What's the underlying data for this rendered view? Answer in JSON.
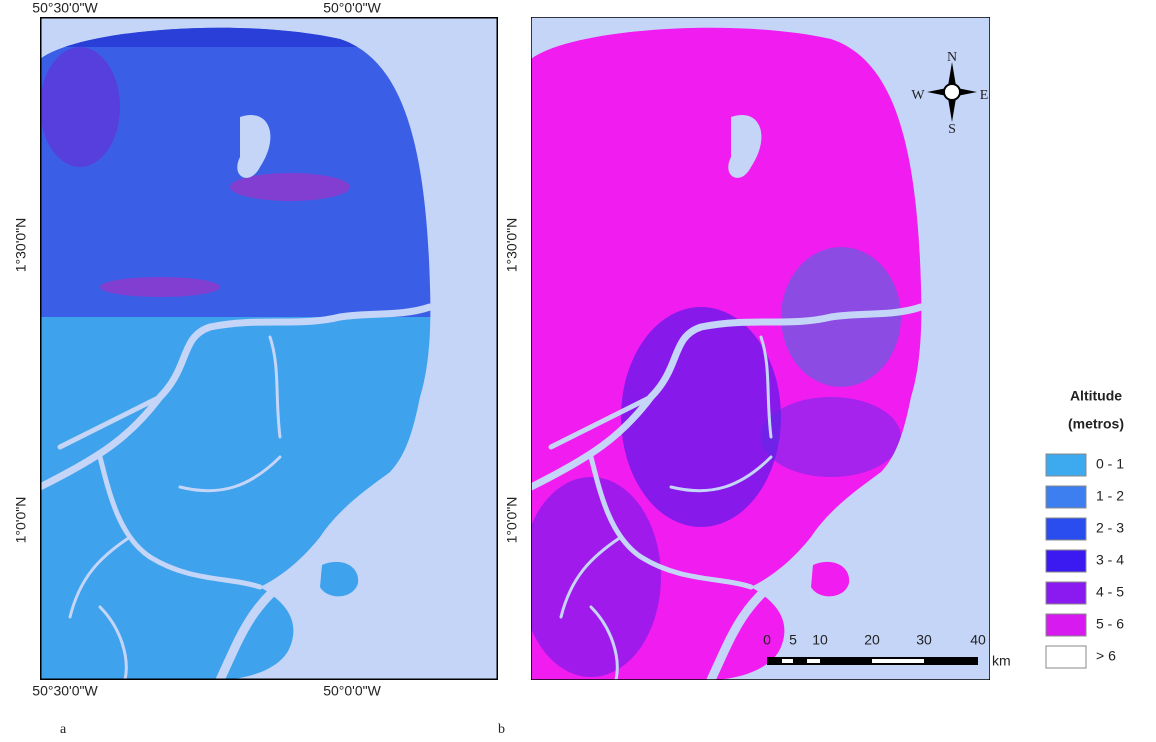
{
  "panels": [
    {
      "label": "a",
      "top_labels": [
        "50°30'0\"W",
        "50°0'0\"W"
      ],
      "bottom_labels": [
        "50°30'0\"W",
        "50°0'0\"W"
      ],
      "left_labels": [
        "1°30'0\"N",
        "1°0'0\"N"
      ]
    },
    {
      "label": "b",
      "left_labels": [
        "1°30'0\"N",
        "1°0'0\"N"
      ],
      "compass": {
        "n": "N",
        "s": "S",
        "e": "E",
        "w": "W"
      },
      "scale_bar": {
        "ticks": [
          0,
          5,
          10,
          20,
          30,
          40
        ],
        "unit": "km"
      }
    }
  ],
  "legend": {
    "title_lines": [
      "Altitude",
      "(metros)"
    ],
    "classes": [
      {
        "label": "0 - 1",
        "color": "#3daaf0"
      },
      {
        "label": "1 - 2",
        "color": "#3d7ef0"
      },
      {
        "label": "2 - 3",
        "color": "#2a4df0"
      },
      {
        "label": "3 - 4",
        "color": "#3a1af0"
      },
      {
        "label": "4 - 5",
        "color": "#8a1af0"
      },
      {
        "label": "5 - 6",
        "color": "#d61af0"
      },
      {
        "label": "> 6",
        "color": "#ffffff"
      }
    ]
  }
}
